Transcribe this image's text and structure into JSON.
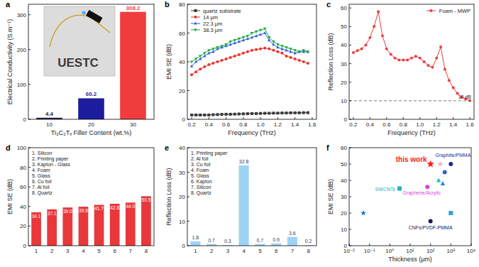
{
  "chart_data": [
    {
      "type": "bar",
      "title": "a",
      "xlabel": "Ti₃C₂Tₓ Filler Content (wt.%)",
      "ylabel": "Electrical Conductivity (S.m⁻¹)",
      "categories": [
        "10",
        "20",
        "30"
      ],
      "values": [
        4.4,
        60.2,
        308.2
      ],
      "colors": [
        "#1e1e46",
        "#1c1c9c",
        "#f03c3c"
      ],
      "ylim": [
        0,
        330
      ],
      "yticks": [
        0,
        100,
        200,
        300
      ],
      "data_labels": true,
      "annotations": [
        "UESTC"
      ]
    },
    {
      "type": "line",
      "title": "b",
      "xlabel": "Frequency (THz)",
      "ylabel": "EMI SE (dB)",
      "x": [
        0.2,
        0.25,
        0.3,
        0.35,
        0.4,
        0.45,
        0.5,
        0.55,
        0.6,
        0.65,
        0.7,
        0.75,
        0.8,
        0.85,
        0.9,
        0.95,
        1.0,
        1.05,
        1.1,
        1.15,
        1.2,
        1.25,
        1.3,
        1.35,
        1.4,
        1.45,
        1.5,
        1.55
      ],
      "series": [
        {
          "name": "quartz substrate",
          "color": "#3a3a3a",
          "marker": "square",
          "values": [
            3,
            3,
            3,
            3,
            3,
            3.2,
            3.3,
            3.4,
            3.5,
            3.5,
            3.6,
            3.7,
            3.8,
            3.9,
            4,
            4,
            4.1,
            4.2,
            4.2,
            4.3,
            4.3,
            4.4,
            4.4,
            4.5,
            4.5,
            4.5,
            4.6,
            4.6
          ]
        },
        {
          "name": "14 μm",
          "color": "#e8332e",
          "marker": "circle",
          "values": [
            31,
            33,
            35,
            36.5,
            38,
            39,
            40,
            41,
            42,
            43,
            44,
            45,
            46,
            47,
            48,
            48.5,
            49,
            49.5,
            49,
            48,
            47,
            46,
            44,
            43,
            42,
            41,
            40,
            39
          ]
        },
        {
          "name": "22.3 μm",
          "color": "#2f5fe0",
          "marker": "triangle",
          "values": [
            37,
            40,
            42,
            44,
            46,
            47,
            49,
            50,
            51,
            52,
            53,
            54,
            55,
            56,
            57,
            58,
            59,
            60,
            55,
            52,
            50,
            49,
            48,
            47,
            46,
            47,
            47,
            47
          ]
        },
        {
          "name": "38.3 μm",
          "color": "#1ea83a",
          "marker": "triangle-down",
          "values": [
            40,
            42,
            44,
            46,
            48,
            49,
            50,
            51,
            52,
            54,
            55,
            56,
            57,
            58,
            60,
            61,
            62,
            63,
            57,
            54,
            52,
            51,
            50,
            49,
            48,
            47,
            48,
            47
          ]
        }
      ],
      "xlim": [
        0.15,
        1.65
      ],
      "xticks": [
        0.2,
        0.4,
        0.6,
        0.8,
        {
          "value": 1,
          "label": "1.0"
        },
        1.2,
        1.4,
        1.6
      ],
      "ylim": [
        0,
        80
      ],
      "yticks": [
        0,
        20,
        40,
        60,
        80
      ],
      "legend": "upper left"
    },
    {
      "type": "line",
      "title": "c",
      "xlabel": "Frequency (THz)",
      "ylabel": "Reflection Loss (dB)",
      "series": [
        {
          "name": "Foam - MWP",
          "color": "#ef3b3b",
          "marker": "circle",
          "x": [
            0.2,
            0.25,
            0.3,
            0.35,
            0.4,
            0.45,
            0.5,
            0.55,
            0.6,
            0.65,
            0.7,
            0.75,
            0.8,
            0.85,
            0.9,
            0.95,
            1.0,
            1.05,
            1.1,
            1.15,
            1.2,
            1.25,
            1.3,
            1.35,
            1.4,
            1.45,
            1.5,
            1.55,
            1.6
          ],
          "values": [
            36,
            37,
            38,
            40,
            44,
            50,
            58,
            45,
            38,
            35,
            33,
            32,
            32,
            32,
            33,
            34,
            33,
            31,
            29,
            28,
            33,
            39,
            27,
            21,
            17,
            14,
            12,
            11,
            10
          ]
        }
      ],
      "threshold": {
        "value": 10,
        "label": "10 dB",
        "line_style": "dashed"
      },
      "xlim": [
        0.15,
        1.65
      ],
      "xticks": [
        0.2,
        0.4,
        0.6,
        0.8,
        {
          "value": 1,
          "label": "1.0"
        },
        1.2,
        1.4,
        1.6
      ],
      "ylim": [
        0,
        62
      ],
      "yticks": [
        0,
        10,
        20,
        30,
        40,
        50,
        60
      ],
      "legend": "upper right"
    },
    {
      "type": "bar",
      "title": "d",
      "ylabel": "EMI SE (dB)",
      "categories": [
        "1",
        "2",
        "3",
        "4",
        "5",
        "6",
        "7",
        "8"
      ],
      "values": [
        34.1,
        37.1,
        39.0,
        39.8,
        41.7,
        42.8,
        44.0,
        50.5
      ],
      "value_labels": [
        "34.1",
        "37.1",
        "39.0",
        "39.8",
        "41.7",
        "42.8",
        "44.0",
        "50.5"
      ],
      "color": "#e8383b",
      "ylim": [
        0,
        100
      ],
      "yticks": [
        0,
        20,
        40,
        60,
        80,
        100
      ],
      "data_labels": true,
      "annotations": [
        "1. Silicon",
        "2. Printing paper",
        "3. Kapton - Glass",
        "4. Foam",
        "5. Glass",
        "6. Cu foil",
        "7. Al foil",
        "8. Quartz"
      ]
    },
    {
      "type": "bar",
      "title": "e",
      "ylabel": "Reflection Loss (dB)",
      "categories": [
        "1",
        "2",
        "3",
        "4",
        "5",
        "6",
        "7",
        "8"
      ],
      "values": [
        1.8,
        0.7,
        0.3,
        32.8,
        0.7,
        0.9,
        3.6,
        0.2
      ],
      "color": "#9fd3f5",
      "ylim": [
        0,
        40
      ],
      "yticks": [
        0,
        10,
        20,
        30,
        40
      ],
      "data_labels": true,
      "annotations": [
        "1. Printing paper",
        "2. Al foil",
        "3. Cu foil",
        "4. Foam",
        "5. Glass",
        "6. Kapton",
        "7. Silicon",
        "8. Quartz"
      ]
    },
    {
      "type": "scatter",
      "title": "f",
      "xlabel": "Thickness (μm)",
      "ylabel": "EMI SE (dB)",
      "log": "x",
      "series": [
        {
          "name": "this work",
          "color": "#ff2020",
          "marker": "star",
          "x": [
            100
          ],
          "values": [
            50
          ]
        },
        {
          "name": "Graphite/PMMA",
          "color": "#1f2a8a",
          "marker": "circle",
          "x": [
            1000
          ],
          "values": [
            50
          ]
        },
        {
          "name": "SWCNTs",
          "color": "#20b2c0",
          "marker": "square",
          "x": [
            3
          ],
          "values": [
            35
          ]
        },
        {
          "name": "Graphene/Acrylic",
          "color": "#e040e0",
          "marker": "circle",
          "x": [
            70
          ],
          "values": [
            36
          ]
        },
        {
          "name": "CNFs/PVDF-PMMA",
          "color": "#151a5a",
          "marker": "circle",
          "x": [
            100
          ],
          "values": [
            15
          ]
        },
        {
          "color": "#2080e0",
          "marker": "star",
          "x": [
            0.05
          ],
          "values": [
            20
          ]
        },
        {
          "color": "#30a0e0",
          "marker": "square",
          "x": [
            1000
          ],
          "values": [
            20
          ]
        },
        {
          "color": "#20c0d0",
          "marker": "triangle",
          "x": [
            250
          ],
          "values": [
            40
          ]
        },
        {
          "color": "#3080e0",
          "marker": "triangle",
          "x": [
            400
          ],
          "values": [
            38
          ]
        },
        {
          "color": "#f0b0c8",
          "marker": "star",
          "x": [
            300
          ],
          "values": [
            50
          ]
        },
        {
          "color": "#3060d0",
          "marker": "circle",
          "x": [
            500
          ],
          "values": [
            45
          ]
        }
      ],
      "xlim": [
        0.01,
        10000
      ],
      "xticks": [
        {
          "value": 0.01,
          "label": "10⁻²"
        },
        {
          "value": 0.1,
          "label": "10⁻¹"
        },
        {
          "value": 1,
          "label": "10⁰"
        },
        {
          "value": 10,
          "label": "10¹"
        },
        {
          "value": 100,
          "label": "10²"
        },
        {
          "value": 1000,
          "label": "10³"
        },
        {
          "value": 10000,
          "label": "10⁴"
        }
      ],
      "ylim": [
        0,
        60
      ],
      "yticks": [
        0,
        10,
        20,
        30,
        40,
        50,
        60
      ]
    }
  ]
}
